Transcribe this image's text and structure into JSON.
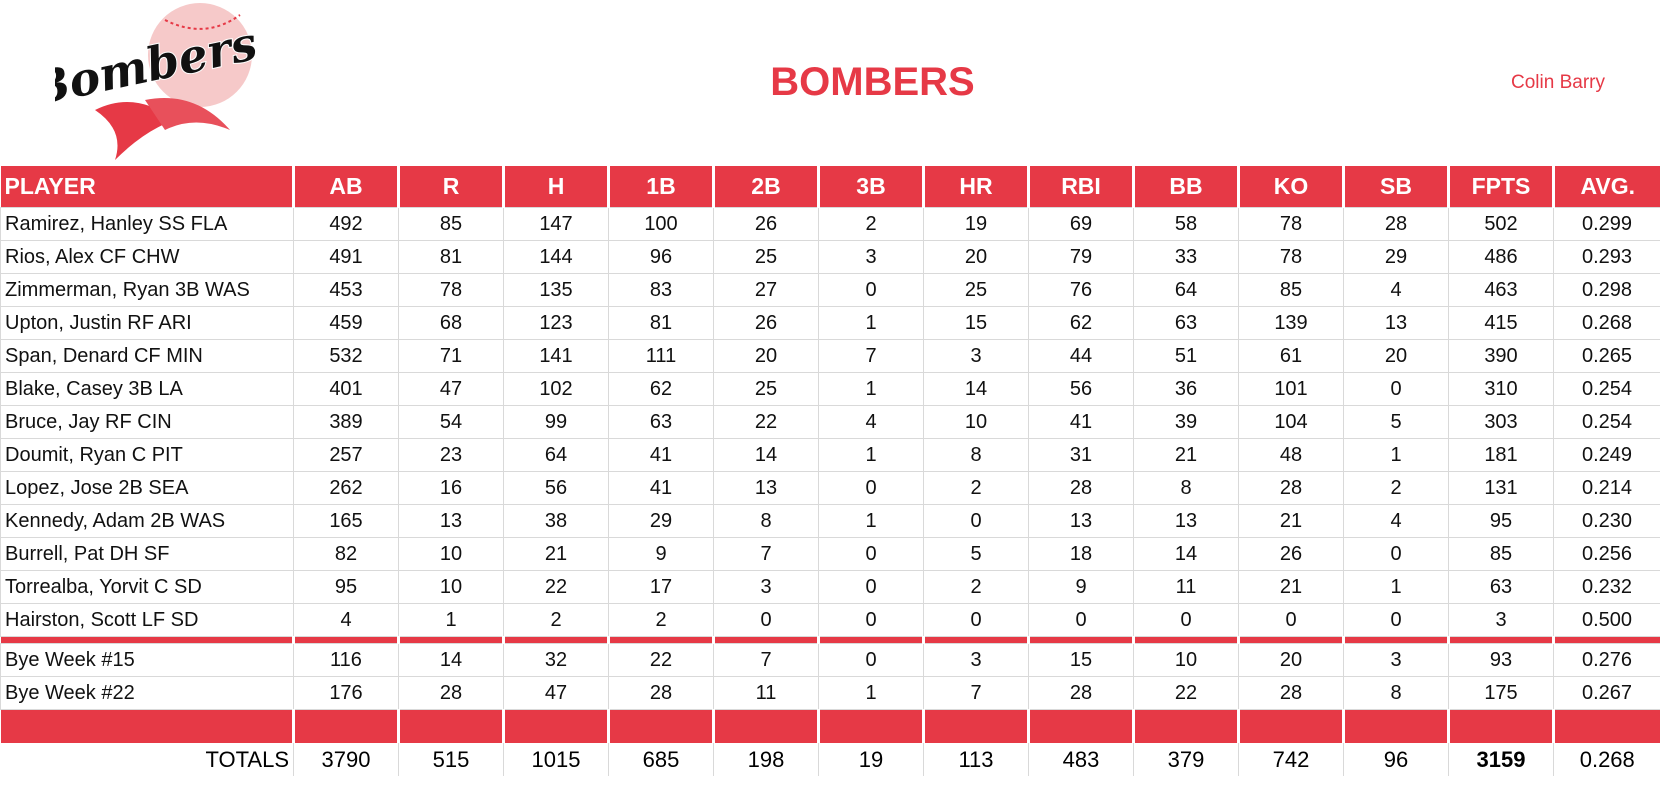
{
  "header": {
    "logo_text": "Bombers",
    "title": "BOMBERS",
    "owner": "Colin Barry"
  },
  "table": {
    "columns": [
      "PLAYER",
      "AB",
      "R",
      "H",
      "1B",
      "2B",
      "3B",
      "HR",
      "RBI",
      "BB",
      "KO",
      "SB",
      "FPTS",
      "AVG."
    ],
    "rows": [
      [
        "Ramirez, Hanley SS FLA",
        492,
        85,
        147,
        100,
        26,
        2,
        19,
        69,
        58,
        78,
        28,
        502,
        "0.299"
      ],
      [
        "Rios, Alex CF CHW",
        491,
        81,
        144,
        96,
        25,
        3,
        20,
        79,
        33,
        78,
        29,
        486,
        "0.293"
      ],
      [
        "Zimmerman, Ryan 3B WAS",
        453,
        78,
        135,
        83,
        27,
        0,
        25,
        76,
        64,
        85,
        4,
        463,
        "0.298"
      ],
      [
        "Upton, Justin RF ARI",
        459,
        68,
        123,
        81,
        26,
        1,
        15,
        62,
        63,
        139,
        13,
        415,
        "0.268"
      ],
      [
        "Span, Denard CF MIN",
        532,
        71,
        141,
        111,
        20,
        7,
        3,
        44,
        51,
        61,
        20,
        390,
        "0.265"
      ],
      [
        "Blake, Casey 3B LA",
        401,
        47,
        102,
        62,
        25,
        1,
        14,
        56,
        36,
        101,
        0,
        310,
        "0.254"
      ],
      [
        "Bruce, Jay RF CIN",
        389,
        54,
        99,
        63,
        22,
        4,
        10,
        41,
        39,
        104,
        5,
        303,
        "0.254"
      ],
      [
        "Doumit, Ryan C PIT",
        257,
        23,
        64,
        41,
        14,
        1,
        8,
        31,
        21,
        48,
        1,
        181,
        "0.249"
      ],
      [
        "Lopez, Jose 2B SEA",
        262,
        16,
        56,
        41,
        13,
        0,
        2,
        28,
        8,
        28,
        2,
        131,
        "0.214"
      ],
      [
        "Kennedy, Adam 2B WAS",
        165,
        13,
        38,
        29,
        8,
        1,
        0,
        13,
        13,
        21,
        4,
        95,
        "0.230"
      ],
      [
        "Burrell, Pat DH SF",
        82,
        10,
        21,
        9,
        7,
        0,
        5,
        18,
        14,
        26,
        0,
        85,
        "0.256"
      ],
      [
        "Torrealba, Yorvit C SD",
        95,
        10,
        22,
        17,
        3,
        0,
        2,
        9,
        11,
        21,
        1,
        63,
        "0.232"
      ],
      [
        "Hairston, Scott LF SD",
        4,
        1,
        2,
        2,
        0,
        0,
        0,
        0,
        0,
        0,
        0,
        3,
        "0.500"
      ]
    ],
    "bye_rows": [
      [
        "Bye Week #15",
        116,
        14,
        32,
        22,
        7,
        0,
        3,
        15,
        10,
        20,
        3,
        93,
        "0.276"
      ],
      [
        "Bye Week #22",
        176,
        28,
        47,
        28,
        11,
        1,
        7,
        28,
        22,
        28,
        8,
        175,
        "0.267"
      ]
    ],
    "totals": [
      "TOTALS",
      3790,
      515,
      1015,
      685,
      198,
      19,
      113,
      483,
      379,
      742,
      96,
      3159,
      "0.268"
    ]
  }
}
